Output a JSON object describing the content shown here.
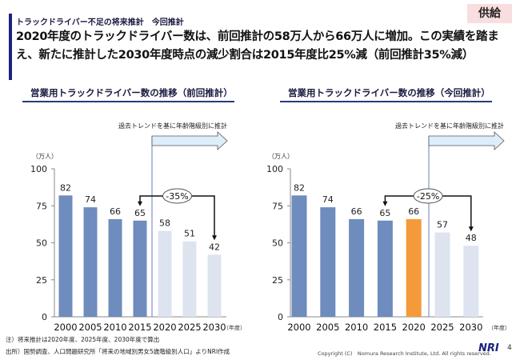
{
  "tag": "供給",
  "subtitle": "トラックドライバー不足の将来推計　今回推計",
  "headline": "2020年度のトラックドライバー数は、前回推計の58万人から66万人に増加。この実績を踏まえ、新たに推計した2030年度時点の減少割合は2015年度比25%減（前回推計35%減）",
  "footnote1": "注）将来推計は2020年度、2025年度、2030年度で算出",
  "footnote2": "出所）国勢調査、人口問題研究所「将来の地域別男女5歳階級別人口」よりNRI作成",
  "copyright": "Copyright (C)　Nomura Research Institute, Ltd. All rights reserved.",
  "logo": "NRI",
  "page": "4",
  "colors": {
    "actual": "#6e8cbd",
    "forecast": "#dde4f0",
    "highlight": "#f59a3a"
  },
  "chart_data": [
    {
      "type": "bar",
      "title": "営業用トラックドライバー数の推移（前回推計）",
      "ylabel": "（万人）",
      "xlabel": "（年度）",
      "ylim": [
        0,
        100
      ],
      "yticks": [
        0,
        25,
        50,
        75,
        100
      ],
      "categories": [
        "2000",
        "2005",
        "2010",
        "2015",
        "2020",
        "2025",
        "2030"
      ],
      "values": [
        82,
        74,
        66,
        65,
        58,
        51,
        42
      ],
      "kinds": [
        "actual",
        "actual",
        "actual",
        "actual",
        "forecast",
        "forecast",
        "forecast"
      ],
      "arrow_label": "過去トレンドを基に年齢階級別に推計",
      "change_label": "-35%"
    },
    {
      "type": "bar",
      "title": "営業用トラックドライバー数の推移（今回推計）",
      "ylabel": "（万人）",
      "xlabel": "（年度）",
      "ylim": [
        0,
        100
      ],
      "yticks": [
        0,
        25,
        50,
        75,
        100
      ],
      "categories": [
        "2000",
        "2005",
        "2010",
        "2015",
        "2020",
        "2025",
        "2030"
      ],
      "values": [
        82,
        74,
        66,
        65,
        66,
        57,
        48
      ],
      "kinds": [
        "actual",
        "actual",
        "actual",
        "actual",
        "highlight",
        "forecast",
        "forecast"
      ],
      "arrow_label": "過去トレンドを基に年齢階級別に推計",
      "change_label": "-25%"
    }
  ]
}
